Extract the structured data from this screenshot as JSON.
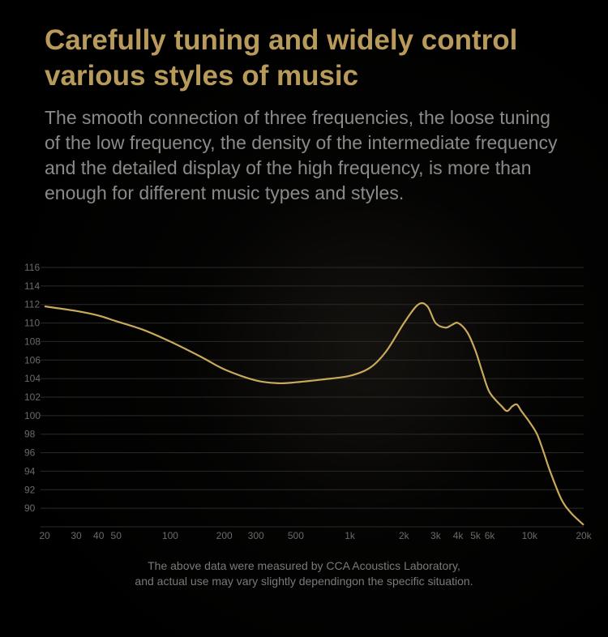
{
  "heading": {
    "title": "Carefully tuning and widely control various styles of music",
    "title_color": "#b89a5a",
    "subtitle": "The smooth connection of three frequencies, the loose tuning of the low frequency, the density of the intermediate frequency and the detailed display of the high frequency, is more than enough for different music types and styles.",
    "subtitle_color": "#8a8a88"
  },
  "chart": {
    "type": "line",
    "background_color": "#000000",
    "line_color": "#c9a95a",
    "line_width": 2.2,
    "axis_label_color": "#6a6a6a",
    "grid_color": "#2a2a2a",
    "axis_font_size": 12,
    "y_axis": {
      "min": 88,
      "max": 116,
      "ticks": [
        90,
        92,
        94,
        96,
        98,
        100,
        102,
        104,
        106,
        108,
        110,
        112,
        114,
        116
      ]
    },
    "x_axis": {
      "scale": "log",
      "min": 20,
      "max": 20000,
      "ticks": [
        20,
        30,
        40,
        50,
        100,
        200,
        300,
        500,
        1000,
        2000,
        3000,
        4000,
        5000,
        6000,
        10000,
        20000
      ],
      "tick_labels": [
        "20",
        "30",
        "40",
        "50",
        "100",
        "200",
        "300",
        "500",
        "1k",
        "2k",
        "3k",
        "4k",
        "5k",
        "6k",
        "10k",
        "20k"
      ]
    },
    "series": {
      "points": [
        [
          20,
          111.8
        ],
        [
          30,
          111.3
        ],
        [
          40,
          110.8
        ],
        [
          50,
          110.2
        ],
        [
          70,
          109.3
        ],
        [
          100,
          108.0
        ],
        [
          150,
          106.3
        ],
        [
          200,
          105.0
        ],
        [
          300,
          103.8
        ],
        [
          400,
          103.5
        ],
        [
          500,
          103.6
        ],
        [
          700,
          103.9
        ],
        [
          1000,
          104.3
        ],
        [
          1300,
          105.2
        ],
        [
          1600,
          107.0
        ],
        [
          2000,
          110.0
        ],
        [
          2400,
          112.0
        ],
        [
          2700,
          111.8
        ],
        [
          3000,
          110.0
        ],
        [
          3400,
          109.5
        ],
        [
          3700,
          109.8
        ],
        [
          4000,
          110.0
        ],
        [
          4500,
          109.0
        ],
        [
          5000,
          107.0
        ],
        [
          5500,
          104.5
        ],
        [
          6000,
          102.5
        ],
        [
          7000,
          101.0
        ],
        [
          7500,
          100.5
        ],
        [
          8000,
          101.0
        ],
        [
          8500,
          101.2
        ],
        [
          9000,
          100.5
        ],
        [
          10000,
          99.3
        ],
        [
          11000,
          98.0
        ],
        [
          12000,
          96.0
        ],
        [
          13000,
          94.0
        ],
        [
          15000,
          91.0
        ],
        [
          17000,
          89.5
        ],
        [
          20000,
          88.2
        ]
      ]
    }
  },
  "footer": {
    "line1": "The above data were measured by CCA Acoustics Laboratory,",
    "line2": "and actual use may vary slightly dependingon the specific situation.",
    "color": "#7a7a78"
  }
}
